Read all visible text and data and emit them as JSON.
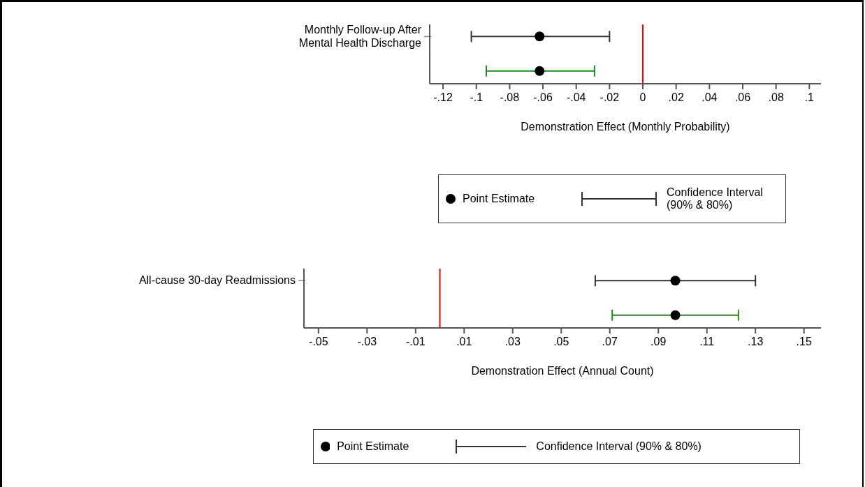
{
  "chart_data": [
    {
      "type": "scatter",
      "orientation": "horizontal",
      "categories": [
        "Monthly Follow-up After\nMental Health Discharge"
      ],
      "xlabel": "Demonstration Effect (Monthly Probability)",
      "xlim": [
        -0.128,
        0.107
      ],
      "xticks": [
        {
          "value": -0.12,
          "label": "-.12"
        },
        {
          "value": -0.1,
          "label": "-.1"
        },
        {
          "value": -0.08,
          "label": "-.08"
        },
        {
          "value": -0.06,
          "label": "-.06"
        },
        {
          "value": -0.04,
          "label": "-.04"
        },
        {
          "value": -0.02,
          "label": "-.02"
        },
        0,
        {
          "value": 0.02,
          "label": ".02"
        },
        {
          "value": 0.04,
          "label": ".04"
        },
        {
          "value": 0.06,
          "label": ".06"
        },
        {
          "value": 0.08,
          "label": ".08"
        },
        {
          "value": 0.1,
          "label": ".1"
        }
      ],
      "series": [
        {
          "color": "#1e8c1e",
          "colors": [
            "#000000"
          ],
          "values": [
            -0.062
          ],
          "errors": [
            [
              -0.094,
              -0.029
            ]
          ]
        },
        {
          "color": "#333333",
          "colors": [
            "#000000"
          ],
          "values": [
            -0.062
          ],
          "errors": [
            [
              -0.103,
              -0.02
            ]
          ]
        }
      ],
      "ref_lines": [
        {
          "axis": "x",
          "value": 0,
          "color": "#ff0000"
        }
      ],
      "marker": "circle",
      "grid": false,
      "annotations": [
        "Point Estimate",
        "Confidence Interval (90% & 80%)"
      ]
    },
    {
      "type": "scatter",
      "orientation": "horizontal",
      "categories": [
        "All-cause 30-day Readmissions"
      ],
      "xlabel": "Demonstration Effect (Annual Count)",
      "xlim": [
        -0.056,
        0.157
      ],
      "xticks": [
        {
          "value": -0.05,
          "label": "-.05"
        },
        {
          "value": -0.03,
          "label": "-.03"
        },
        {
          "value": -0.01,
          "label": "-.01"
        },
        {
          "value": 0.01,
          "label": ".01"
        },
        {
          "value": 0.03,
          "label": ".03"
        },
        {
          "value": 0.05,
          "label": ".05"
        },
        {
          "value": 0.07,
          "label": ".07"
        },
        {
          "value": 0.09,
          "label": ".09"
        },
        {
          "value": 0.11,
          "label": ".11"
        },
        {
          "value": 0.13,
          "label": ".13"
        },
        {
          "value": 0.15,
          "label": ".15"
        }
      ],
      "series": [
        {
          "color": "#1e8c1e",
          "colors": [
            "#000000"
          ],
          "values": [
            0.097
          ],
          "errors": [
            [
              0.071,
              0.123
            ]
          ]
        },
        {
          "color": "#333333",
          "colors": [
            "#000000"
          ],
          "values": [
            0.097
          ],
          "errors": [
            [
              0.064,
              0.13
            ]
          ]
        }
      ],
      "ref_lines": [
        {
          "axis": "x",
          "value": 0,
          "color": "#ff0000"
        }
      ],
      "marker": "circle",
      "grid": false,
      "annotations": [
        "Point Estimate",
        "Confidence Interval (90% & 80%)"
      ]
    }
  ]
}
